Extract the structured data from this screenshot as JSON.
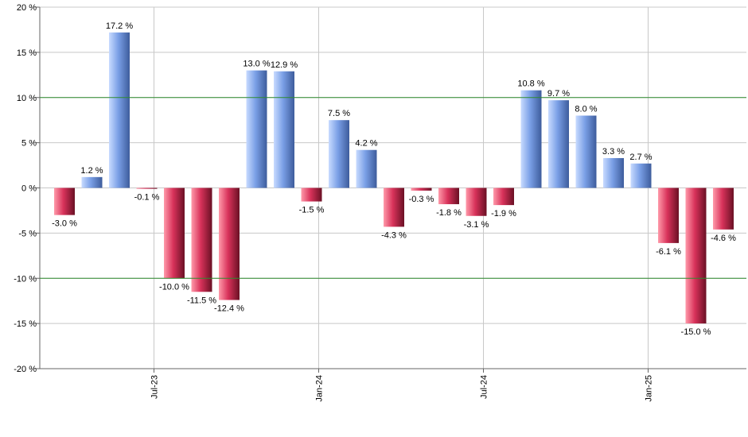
{
  "chart_data": {
    "type": "bar",
    "title": "",
    "xlabel": "",
    "ylabel": "",
    "ylim": [
      -20,
      20
    ],
    "yticks": [
      20,
      15,
      10,
      5,
      0,
      -5,
      -10,
      -15,
      -20
    ],
    "ytick_labels": [
      "20 %",
      "15 %",
      "10 %",
      "5 %",
      "0 %",
      "-5 %",
      "-10 %",
      "-15 %",
      "-20 %"
    ],
    "reference_lines": [
      10,
      -10
    ],
    "values": [
      -3.0,
      1.2,
      17.2,
      -0.1,
      -10.0,
      -11.5,
      -12.4,
      13.0,
      12.9,
      -1.5,
      7.5,
      4.2,
      -4.3,
      -0.3,
      -1.8,
      -3.1,
      -1.9,
      10.8,
      9.7,
      8.0,
      3.3,
      2.7,
      -6.1,
      -15.0,
      -4.6
    ],
    "value_labels": [
      "-3.0 %",
      "1.2 %",
      "17.2 %",
      "-0.1 %",
      "-10.0 %",
      "-11.5 %",
      "-12.4 %",
      "13.0 %",
      "12.9 %",
      "-1.5 %",
      "7.5 %",
      "4.2 %",
      "-4.3 %",
      "-0.3 %",
      "-1.8 %",
      "-3.1 %",
      "-1.9 %",
      "10.8 %",
      "9.7 %",
      "8.0 %",
      "3.3 %",
      "2.7 %",
      "-6.1 %",
      "-15.0 %",
      "-4.6 %"
    ],
    "x_ticks": [
      {
        "label": "Jul-23",
        "index": 3
      },
      {
        "label": "Jan-24",
        "index": 9
      },
      {
        "label": "Jul-24",
        "index": 15
      },
      {
        "label": "Jan-25",
        "index": 21
      }
    ],
    "grid": true,
    "colors": {
      "positive_light": "#c8dbff",
      "positive_mid": "#7a9fe6",
      "positive_dark": "#3d5c9c",
      "negative_light": "#ff9aaa",
      "negative_mid": "#d8325a",
      "negative_dark": "#6a1024",
      "reference_line": "#2e8b2e",
      "grid": "#c8c8c8",
      "axis": "#666666"
    }
  }
}
